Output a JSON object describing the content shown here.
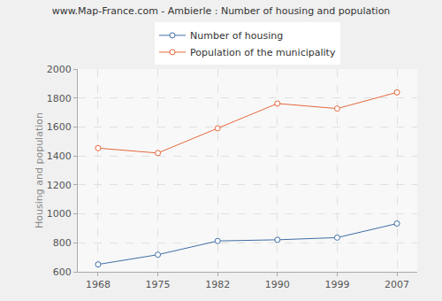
{
  "chart_data": {
    "type": "line",
    "title": "www.Map-France.com - Ambierle : Number of housing and population",
    "y_label": "Housing and population",
    "categories": [
      "1968",
      "1975",
      "1982",
      "1990",
      "1999",
      "2007"
    ],
    "series": [
      {
        "name": "Number of housing",
        "color": "#3f6fa6",
        "values": [
          651,
          718,
          813,
          821,
          836,
          933
        ]
      },
      {
        "name": "Population of the municipality",
        "color": "#e5683c",
        "values": [
          1454,
          1420,
          1591,
          1762,
          1727,
          1839
        ]
      }
    ],
    "ylim": [
      600,
      2000
    ],
    "yticks": [
      600,
      800,
      1000,
      1200,
      1400,
      1600,
      1800,
      2000
    ],
    "grid": true,
    "legend": "top",
    "marker": "circle"
  }
}
